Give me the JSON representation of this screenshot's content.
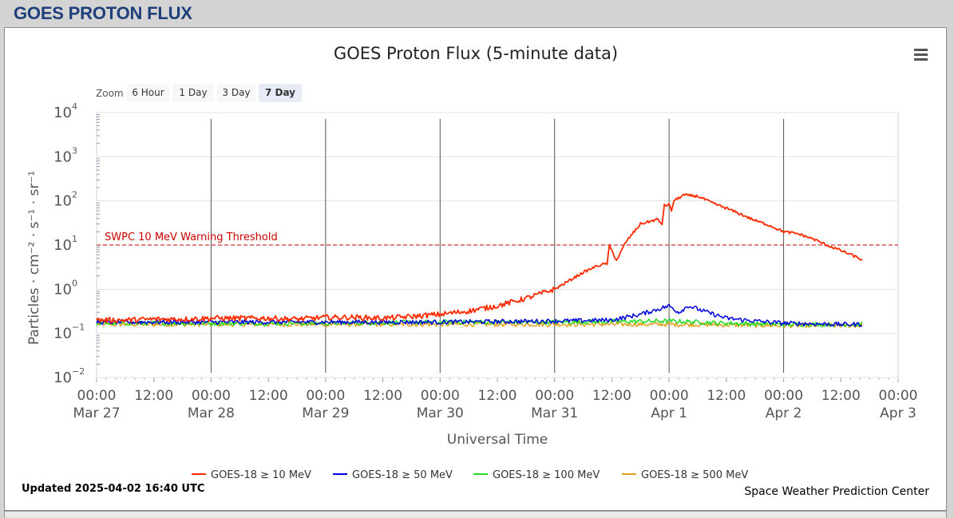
{
  "page": {
    "heading": "GOES PROTON FLUX"
  },
  "toolbar": {
    "zoom_label": "Zoom",
    "zoom_buttons": [
      "6 Hour",
      "1 Day",
      "3 Day",
      "7 Day"
    ],
    "active_zoom": "7 Day",
    "menu_icon": "hamburger-menu-icon"
  },
  "footer": {
    "updated": "Updated 2025-04-02 16:40 UTC",
    "credit": "Space Weather Prediction Center"
  },
  "colors": {
    "s10": "#ff2a00",
    "s50": "#0000dd",
    "s100": "#22dd22",
    "s500": "#e0a020",
    "threshold": "#cc0000",
    "heading": "#1f3f7a"
  },
  "chart_data": {
    "type": "line",
    "title": "GOES Proton Flux (5-minute data)",
    "xlabel": "Universal Time",
    "ylabel": "Particles · cm⁻² · s⁻¹ · sr⁻¹",
    "yscale": "log",
    "ylim": [
      0.01,
      10000
    ],
    "y_ticks": [
      {
        "v": 0.01,
        "label": "10",
        "exp": "−2"
      },
      {
        "v": 0.1,
        "label": "10",
        "exp": "−1"
      },
      {
        "v": 1,
        "label": "10",
        "exp": "0"
      },
      {
        "v": 10,
        "label": "10",
        "exp": "1"
      },
      {
        "v": 100,
        "label": "10",
        "exp": "2"
      },
      {
        "v": 1000,
        "label": "10",
        "exp": "3"
      },
      {
        "v": 10000,
        "label": "10",
        "exp": "4"
      }
    ],
    "xlim": [
      "2025-03-27T00:00",
      "2025-04-03T00:00"
    ],
    "x_ticks": [
      {
        "t": "2025-03-27T00:00",
        "time": "00:00",
        "date": "Mar 27"
      },
      {
        "t": "2025-03-27T12:00",
        "time": "12:00",
        "date": ""
      },
      {
        "t": "2025-03-28T00:00",
        "time": "00:00",
        "date": "Mar 28"
      },
      {
        "t": "2025-03-28T12:00",
        "time": "12:00",
        "date": ""
      },
      {
        "t": "2025-03-29T00:00",
        "time": "00:00",
        "date": "Mar 29"
      },
      {
        "t": "2025-03-29T12:00",
        "time": "12:00",
        "date": ""
      },
      {
        "t": "2025-03-30T00:00",
        "time": "00:00",
        "date": "Mar 30"
      },
      {
        "t": "2025-03-30T12:00",
        "time": "12:00",
        "date": ""
      },
      {
        "t": "2025-03-31T00:00",
        "time": "00:00",
        "date": "Mar 31"
      },
      {
        "t": "2025-03-31T12:00",
        "time": "12:00",
        "date": ""
      },
      {
        "t": "2025-04-01T00:00",
        "time": "00:00",
        "date": "Apr 1"
      },
      {
        "t": "2025-04-01T12:00",
        "time": "12:00",
        "date": ""
      },
      {
        "t": "2025-04-02T00:00",
        "time": "00:00",
        "date": "Apr 2"
      },
      {
        "t": "2025-04-02T12:00",
        "time": "12:00",
        "date": ""
      },
      {
        "t": "2025-04-03T00:00",
        "time": "00:00",
        "date": "Apr 3"
      }
    ],
    "day_lines": [
      "2025-03-28T00:00",
      "2025-03-29T00:00",
      "2025-03-30T00:00",
      "2025-03-31T00:00",
      "2025-04-01T00:00",
      "2025-04-02T00:00"
    ],
    "threshold": {
      "value": 10,
      "label": "SWPC 10 MeV Warning Threshold"
    },
    "legend_position": "bottom-center",
    "series": [
      {
        "name": "GOES-18 ≥ 10 MeV",
        "color": "#ff2a00",
        "points": [
          [
            "2025-03-27T00:00",
            0.2
          ],
          [
            "2025-03-27T06:00",
            0.2
          ],
          [
            "2025-03-27T12:00",
            0.21
          ],
          [
            "2025-03-27T18:00",
            0.21
          ],
          [
            "2025-03-28T00:00",
            0.22
          ],
          [
            "2025-03-28T06:00",
            0.22
          ],
          [
            "2025-03-28T12:00",
            0.22
          ],
          [
            "2025-03-28T18:00",
            0.21
          ],
          [
            "2025-03-29T00:00",
            0.23
          ],
          [
            "2025-03-29T06:00",
            0.23
          ],
          [
            "2025-03-29T12:00",
            0.22
          ],
          [
            "2025-03-29T18:00",
            0.24
          ],
          [
            "2025-03-30T00:00",
            0.27
          ],
          [
            "2025-03-30T06:00",
            0.32
          ],
          [
            "2025-03-30T12:00",
            0.42
          ],
          [
            "2025-03-30T18:00",
            0.62
          ],
          [
            "2025-03-31T00:00",
            1.0
          ],
          [
            "2025-03-31T06:00",
            2.4
          ],
          [
            "2025-03-31T09:00",
            3.4
          ],
          [
            "2025-03-31T11:00",
            3.8
          ],
          [
            "2025-03-31T11:30",
            9.5
          ],
          [
            "2025-03-31T13:00",
            4.5
          ],
          [
            "2025-03-31T15:00",
            12
          ],
          [
            "2025-03-31T18:00",
            30
          ],
          [
            "2025-03-31T21:30",
            38
          ],
          [
            "2025-03-31T22:30",
            30
          ],
          [
            "2025-03-31T23:00",
            78
          ],
          [
            "2025-04-01T00:00",
            82
          ],
          [
            "2025-04-01T00:30",
            60
          ],
          [
            "2025-04-01T01:00",
            100
          ],
          [
            "2025-04-01T03:00",
            135
          ],
          [
            "2025-04-01T06:00",
            128
          ],
          [
            "2025-04-01T09:00",
            90
          ],
          [
            "2025-04-01T12:00",
            68
          ],
          [
            "2025-04-01T15:00",
            50
          ],
          [
            "2025-04-01T18:00",
            36
          ],
          [
            "2025-04-01T21:00",
            28
          ],
          [
            "2025-04-02T00:00",
            20
          ],
          [
            "2025-04-02T03:00",
            18
          ],
          [
            "2025-04-02T06:00",
            14
          ],
          [
            "2025-04-02T09:00",
            10
          ],
          [
            "2025-04-02T12:00",
            7.5
          ],
          [
            "2025-04-02T15:00",
            5.5
          ],
          [
            "2025-04-02T16:40",
            4.5
          ]
        ]
      },
      {
        "name": "GOES-18 ≥ 50 MeV",
        "color": "#0000dd",
        "points": [
          [
            "2025-03-27T00:00",
            0.18
          ],
          [
            "2025-03-28T00:00",
            0.18
          ],
          [
            "2025-03-29T00:00",
            0.18
          ],
          [
            "2025-03-30T00:00",
            0.18
          ],
          [
            "2025-03-31T00:00",
            0.19
          ],
          [
            "2025-03-31T12:00",
            0.2
          ],
          [
            "2025-03-31T18:00",
            0.27
          ],
          [
            "2025-04-01T00:00",
            0.42
          ],
          [
            "2025-04-01T02:00",
            0.3
          ],
          [
            "2025-04-01T04:00",
            0.42
          ],
          [
            "2025-04-01T08:00",
            0.3
          ],
          [
            "2025-04-01T12:00",
            0.22
          ],
          [
            "2025-04-01T18:00",
            0.19
          ],
          [
            "2025-04-02T00:00",
            0.17
          ],
          [
            "2025-04-02T12:00",
            0.16
          ],
          [
            "2025-04-02T16:40",
            0.16
          ]
        ]
      },
      {
        "name": "GOES-18 ≥ 100 MeV",
        "color": "#22dd22",
        "points": [
          [
            "2025-03-27T00:00",
            0.17
          ],
          [
            "2025-03-28T00:00",
            0.17
          ],
          [
            "2025-03-29T00:00",
            0.17
          ],
          [
            "2025-03-30T00:00",
            0.18
          ],
          [
            "2025-03-31T00:00",
            0.18
          ],
          [
            "2025-04-01T00:00",
            0.19
          ],
          [
            "2025-04-01T12:00",
            0.17
          ],
          [
            "2025-04-02T00:00",
            0.16
          ],
          [
            "2025-04-02T16:40",
            0.16
          ]
        ]
      },
      {
        "name": "GOES-18 ≥ 500 MeV",
        "color": "#e0a020",
        "points": [
          [
            "2025-03-27T00:00",
            0.16
          ],
          [
            "2025-03-28T00:00",
            0.16
          ],
          [
            "2025-03-29T00:00",
            0.16
          ],
          [
            "2025-03-30T00:00",
            0.16
          ],
          [
            "2025-03-31T00:00",
            0.16
          ],
          [
            "2025-04-01T00:00",
            0.16
          ],
          [
            "2025-04-02T00:00",
            0.15
          ],
          [
            "2025-04-02T16:40",
            0.15
          ]
        ]
      }
    ]
  }
}
